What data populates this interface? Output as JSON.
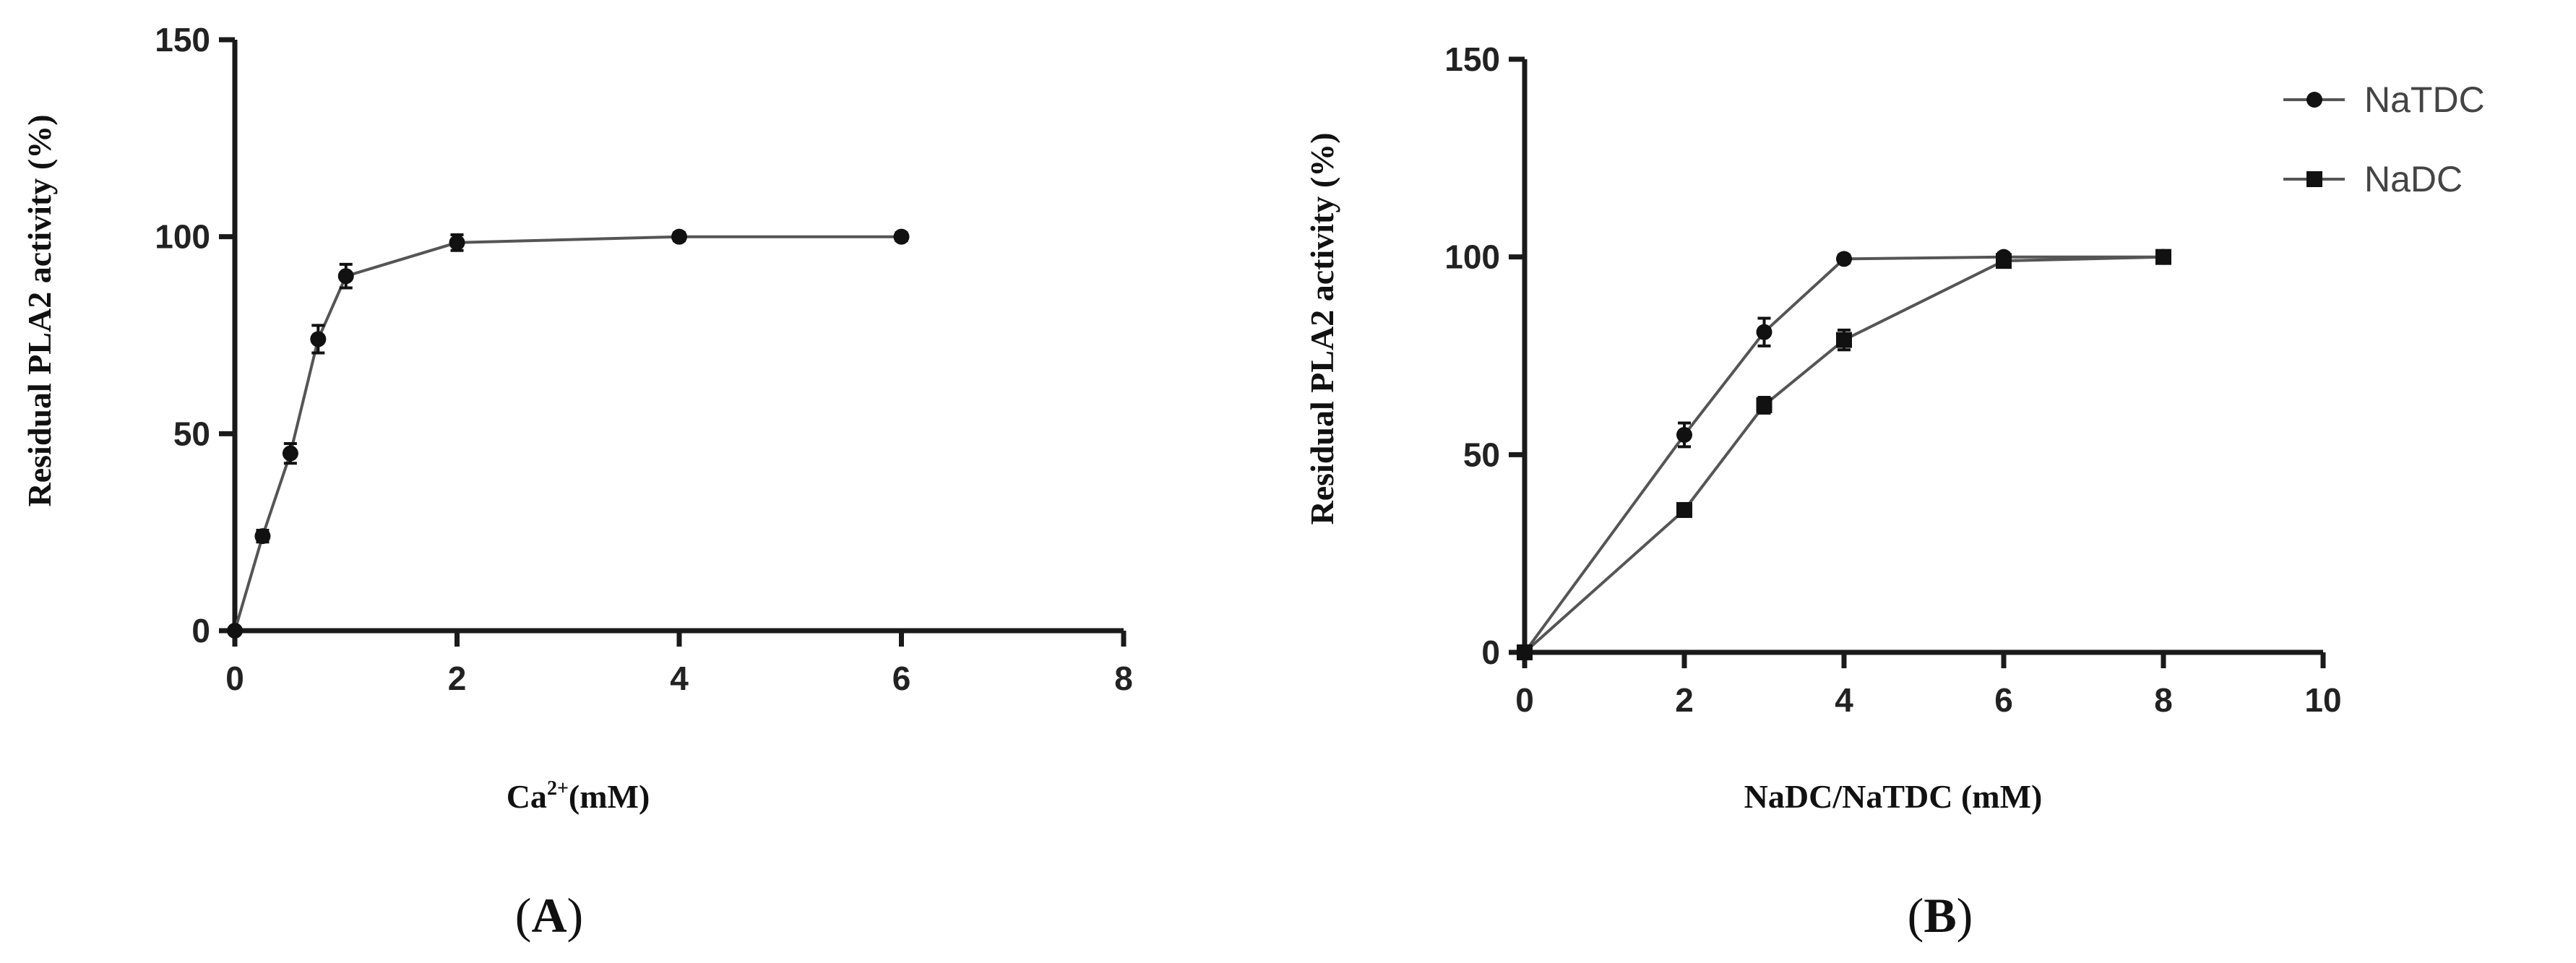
{
  "panels": {
    "a": {
      "label_open": "(",
      "label_letter": "A",
      "label_close": ")"
    },
    "b": {
      "label_open": "(",
      "label_letter": "B",
      "label_close": ")"
    }
  },
  "chart_data": [
    {
      "type": "line",
      "title": "",
      "xlabel_main": "Ca",
      "xlabel_sup": "2+",
      "xlabel_rest": "(mM)",
      "ylabel": "Residual PLA2 activity (%)",
      "xlim": [
        0,
        8
      ],
      "ylim": [
        0,
        150
      ],
      "xticks": [
        0,
        2,
        4,
        6,
        8
      ],
      "yticks": [
        0,
        50,
        100,
        150
      ],
      "grid": false,
      "series": [
        {
          "marker": "circle",
          "x": [
            0,
            0.25,
            0.5,
            0.75,
            1,
            2,
            4,
            6
          ],
          "y": [
            0,
            24,
            45,
            74,
            90,
            98.5,
            100,
            100
          ],
          "err": [
            0,
            1.5,
            2.5,
            3.5,
            3,
            2,
            1,
            1
          ]
        }
      ]
    },
    {
      "type": "line",
      "title": "",
      "xlabel": "NaDC/NaTDC (mM)",
      "ylabel": "Residual PLA2 activity (%)",
      "xlim": [
        0,
        10
      ],
      "ylim": [
        0,
        150
      ],
      "xticks": [
        0,
        2,
        4,
        6,
        8,
        10
      ],
      "yticks": [
        0,
        50,
        100,
        150
      ],
      "grid": false,
      "legend_position": "top-right",
      "series": [
        {
          "name": "NaTDC",
          "marker": "circle",
          "x": [
            0,
            2,
            3,
            4,
            6,
            8
          ],
          "y": [
            0,
            55,
            81,
            99.5,
            100,
            100
          ],
          "err": [
            0,
            3,
            3.5,
            1,
            1,
            1
          ]
        },
        {
          "name": "NaDC",
          "marker": "square",
          "x": [
            0,
            2,
            3,
            4,
            6,
            8
          ],
          "y": [
            0,
            36,
            62.5,
            79,
            99,
            100
          ],
          "err": [
            0,
            1.5,
            2,
            2.5,
            1.5,
            1
          ]
        }
      ]
    }
  ]
}
